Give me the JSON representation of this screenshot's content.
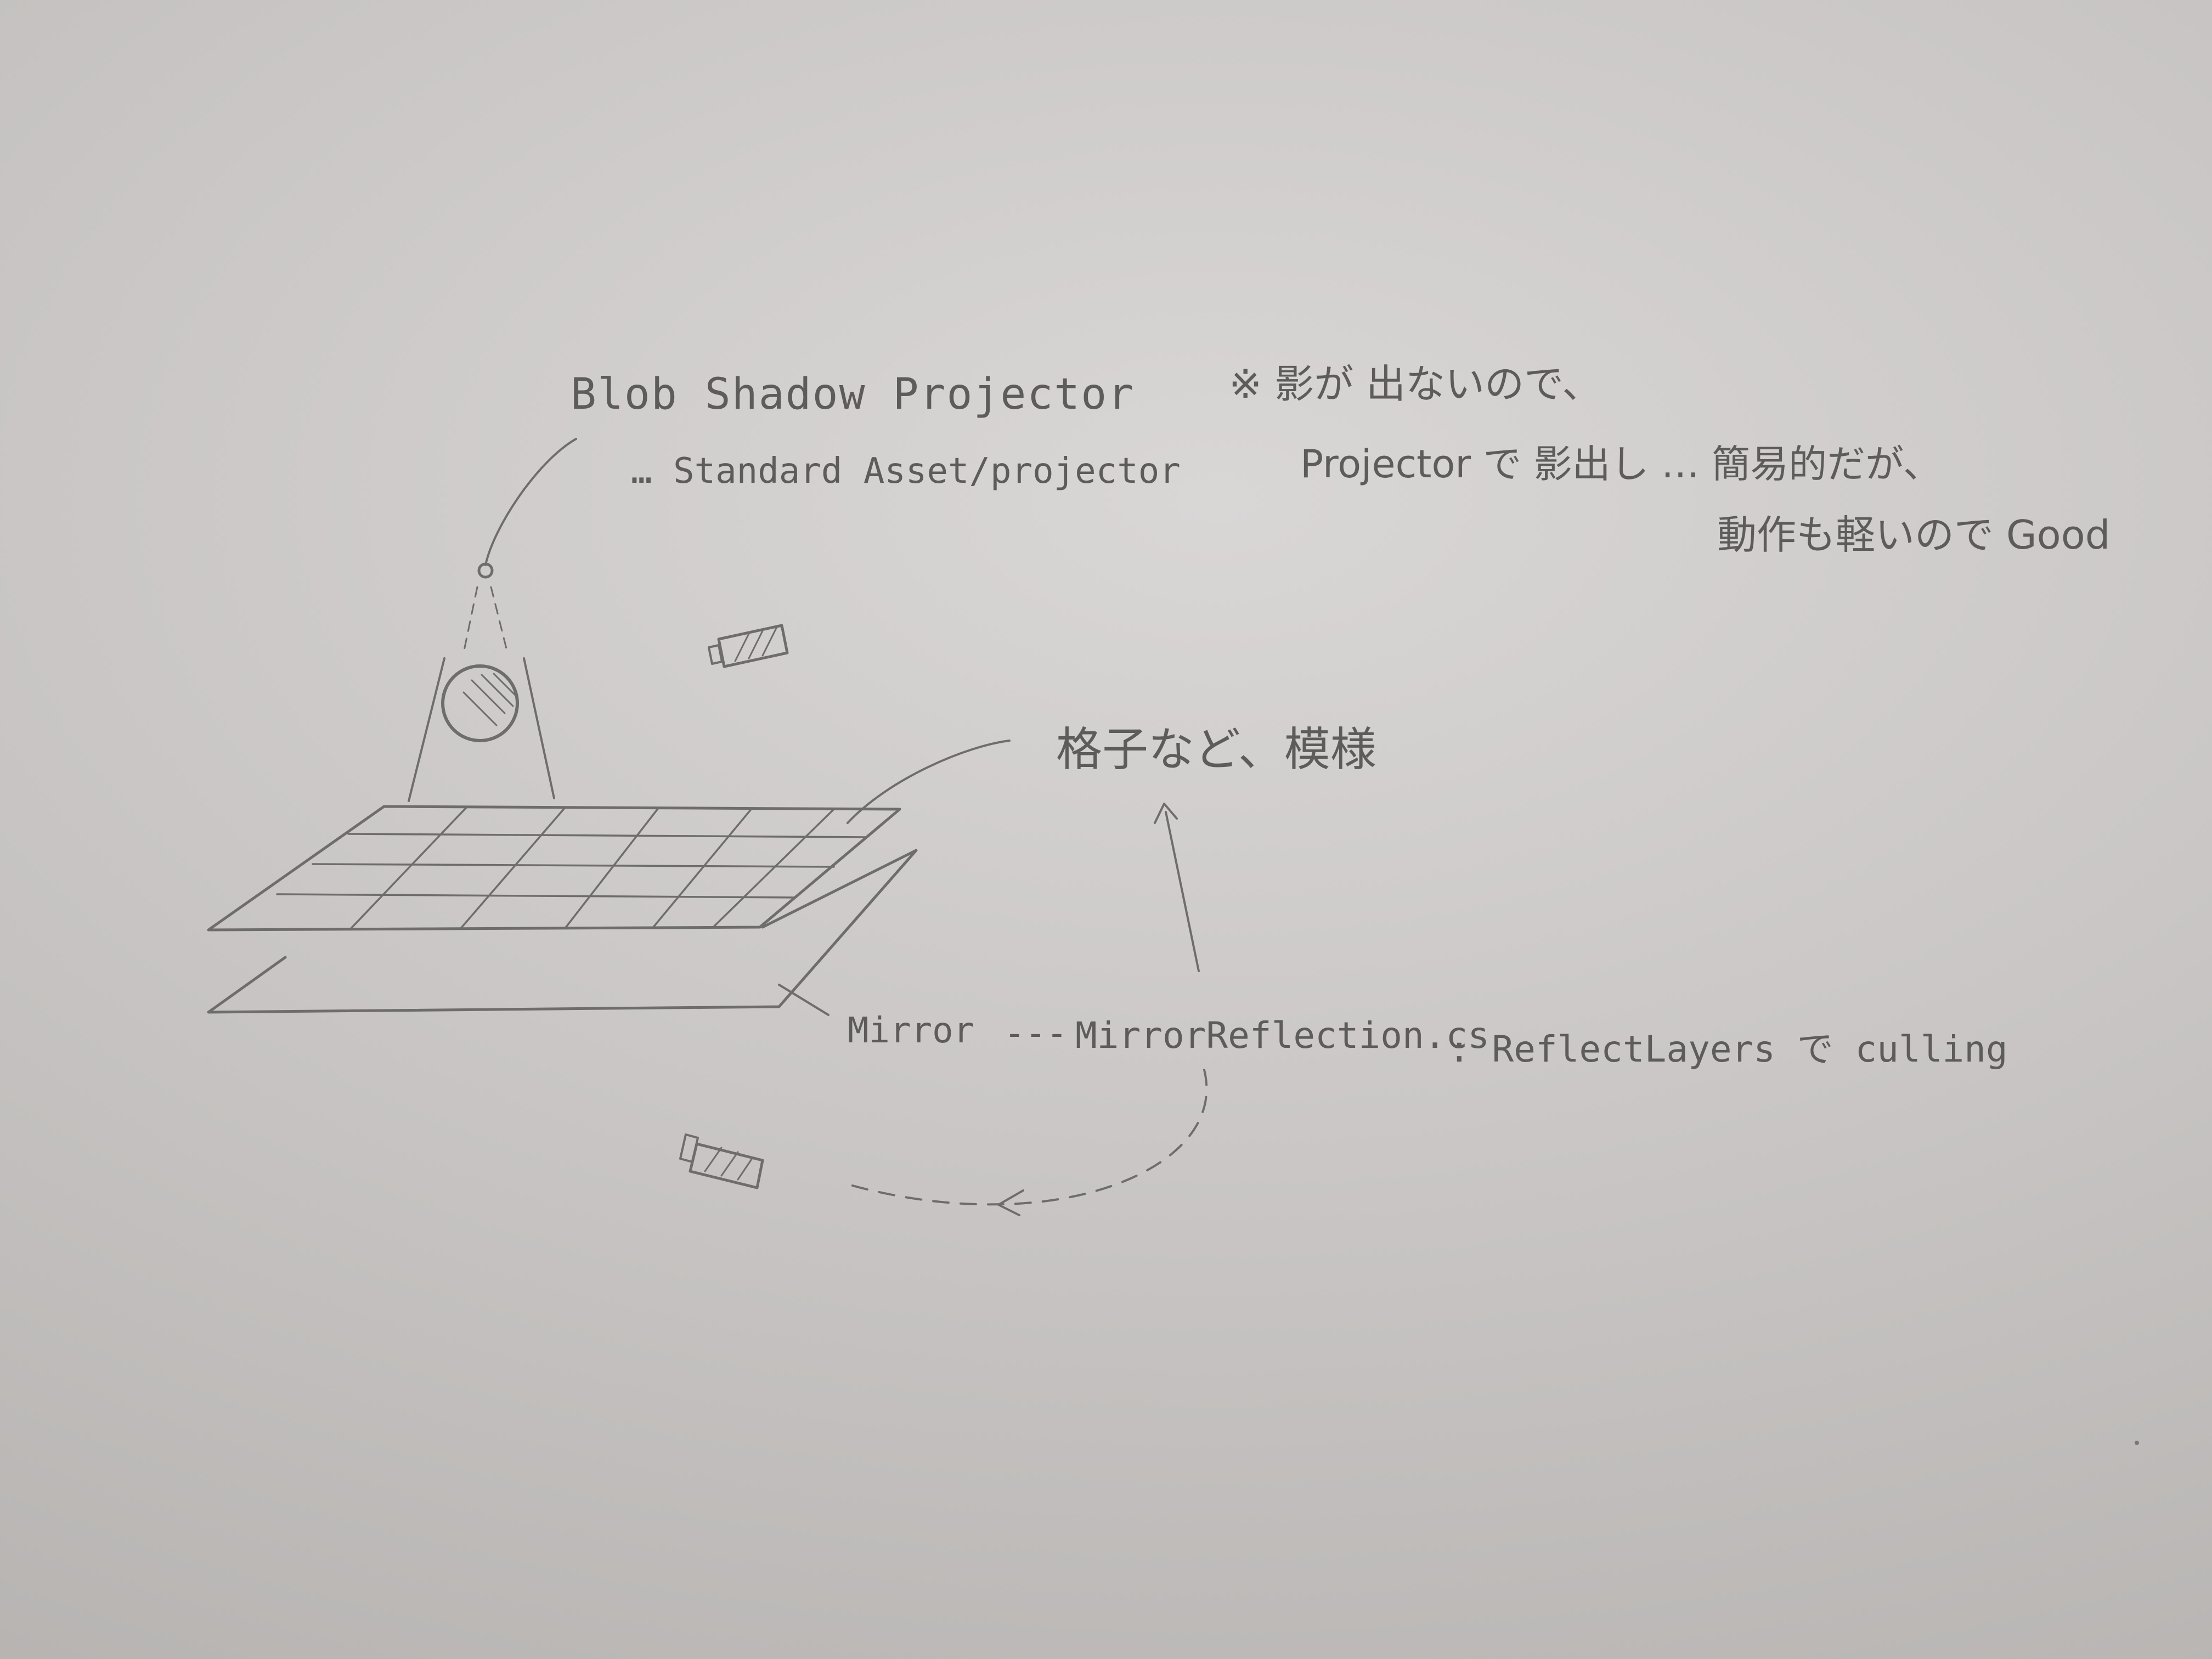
{
  "labels": {
    "projector_title": "Blob Shadow Projector",
    "projector_path": "… Standard Asset/projector",
    "grid_note": "格子など、模様",
    "mirror_label": "Mirror",
    "mirror_dash": "---",
    "mirror_script": "MirrorReflection.cs",
    "mirror_note": ": ReflectLayers で culling"
  },
  "notes": {
    "line1": "※ 影が 出ないので、",
    "line2": "Projector で 影出し … 簡易的だが、",
    "line3": "動作も軽いので Good"
  },
  "colors": {
    "ink": "#5e5c5b",
    "paper": "#cfcccb"
  }
}
